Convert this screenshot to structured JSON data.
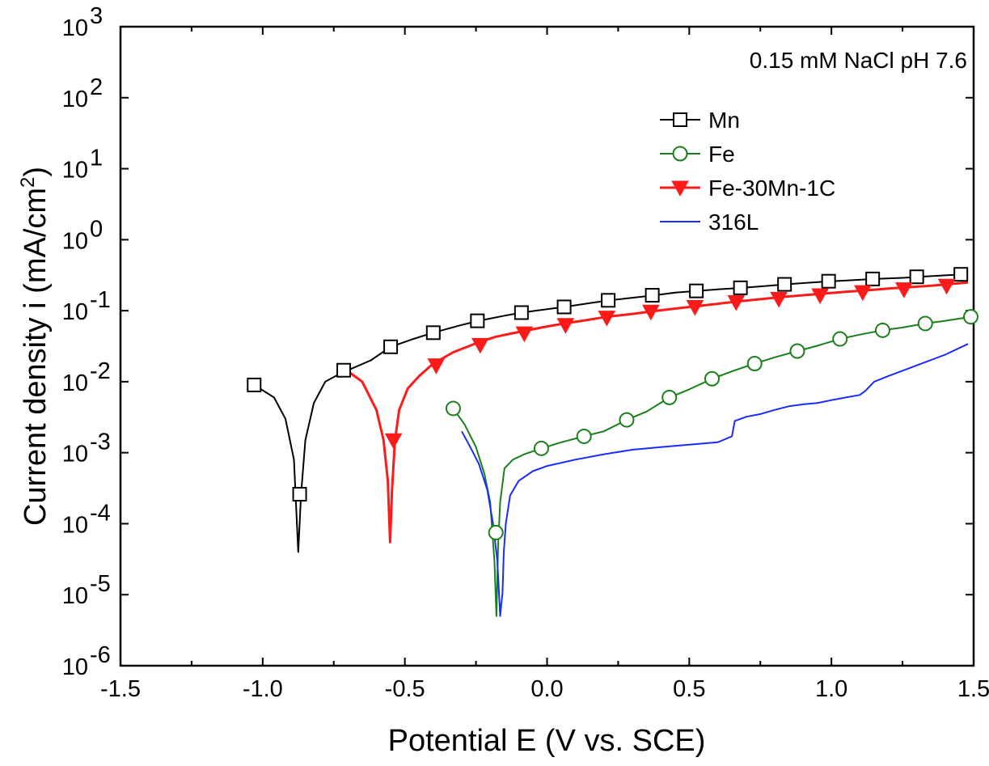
{
  "chart_data": {
    "type": "line",
    "title": "",
    "xlabel": "Potential E (V vs. SCE)",
    "ylabel": "Current density i (mA/cm",
    "ylabel_superscript": "2",
    "ylabel_suffix": ")",
    "xlim": [
      -1.5,
      1.5
    ],
    "ylim": [
      1e-06,
      1000
    ],
    "yscale": "log",
    "grid": false,
    "legend_position": "top-right",
    "x_ticks": [
      -1.5,
      -1.0,
      -0.5,
      0.0,
      0.5,
      1.0,
      1.5
    ],
    "x_tick_labels": [
      "-1.5",
      "-1.0",
      "-0.5",
      "0.0",
      "0.5",
      "1.0",
      "1.5"
    ],
    "y_tick_exponents": [
      -6,
      -5,
      -4,
      -3,
      -2,
      -1,
      0,
      1,
      2,
      3
    ],
    "y_tick_base": "10",
    "annotation": "0.15 mM NaCl  pH 7.6",
    "series": [
      {
        "name": "Mn",
        "color": "#000000",
        "marker": "open-square",
        "x": [
          -1.03,
          -0.96,
          -0.92,
          -0.89,
          -0.875,
          -0.865,
          -0.85,
          -0.82,
          -0.78,
          -0.72,
          -0.7,
          -0.62,
          -0.55,
          -0.47,
          -0.4,
          -0.3,
          -0.24,
          -0.15,
          -0.09,
          0.0,
          0.06,
          0.15,
          0.22,
          0.3,
          0.38,
          0.45,
          0.53,
          0.6,
          0.69,
          0.75,
          0.84,
          0.9,
          1.0,
          1.08,
          1.15,
          1.25,
          1.31,
          1.4,
          1.46,
          1.48
        ],
        "y": [
          0.009,
          0.006,
          0.003,
          0.0008,
          4e-05,
          0.00026,
          0.0015,
          0.005,
          0.01,
          0.0135,
          0.0145,
          0.02,
          0.031,
          0.04,
          0.049,
          0.063,
          0.072,
          0.085,
          0.094,
          0.105,
          0.113,
          0.128,
          0.14,
          0.152,
          0.165,
          0.18,
          0.19,
          0.2,
          0.21,
          0.22,
          0.235,
          0.245,
          0.26,
          0.27,
          0.28,
          0.29,
          0.3,
          0.315,
          0.325,
          0.33
        ],
        "marker_x": [
          -1.03,
          -0.87,
          -0.715,
          -0.55,
          -0.4,
          -0.245,
          -0.09,
          0.06,
          0.215,
          0.37,
          0.525,
          0.68,
          0.835,
          0.99,
          1.145,
          1.3,
          1.455
        ],
        "marker_y": [
          0.009,
          0.00026,
          0.0145,
          0.031,
          0.049,
          0.072,
          0.094,
          0.113,
          0.14,
          0.165,
          0.19,
          0.21,
          0.235,
          0.26,
          0.28,
          0.3,
          0.325
        ]
      },
      {
        "name": "Fe",
        "color": "#1a7f1a",
        "marker": "open-circle",
        "x": [
          -0.33,
          -0.29,
          -0.25,
          -0.22,
          -0.2,
          -0.185,
          -0.178,
          -0.172,
          -0.165,
          -0.15,
          -0.12,
          -0.08,
          -0.02,
          0.05,
          0.13,
          0.2,
          0.28,
          0.35,
          0.43,
          0.5,
          0.58,
          0.65,
          0.73,
          0.8,
          0.88,
          0.95,
          1.03,
          1.1,
          1.18,
          1.25,
          1.33,
          1.4,
          1.49
        ],
        "y": [
          0.0042,
          0.0025,
          0.0012,
          0.0005,
          0.0002,
          3e-05,
          5e-06,
          5e-05,
          0.0002,
          0.0006,
          0.0008,
          0.00095,
          0.00115,
          0.0014,
          0.0017,
          0.002,
          0.0029,
          0.0038,
          0.006,
          0.0078,
          0.011,
          0.014,
          0.018,
          0.022,
          0.027,
          0.032,
          0.04,
          0.046,
          0.053,
          0.058,
          0.066,
          0.072,
          0.082
        ],
        "marker_x": [
          -0.33,
          -0.18,
          -0.02,
          0.13,
          0.28,
          0.43,
          0.58,
          0.73,
          0.88,
          1.03,
          1.18,
          1.33,
          1.49
        ],
        "marker_y": [
          0.0042,
          7.5e-05,
          0.00115,
          0.0017,
          0.0029,
          0.006,
          0.011,
          0.018,
          0.027,
          0.04,
          0.053,
          0.066,
          0.082
        ]
      },
      {
        "name": "Fe-30Mn-1C",
        "color": "#ff1a1a",
        "marker": "filled-triangle-down",
        "x": [
          -0.7,
          -0.65,
          -0.6,
          -0.575,
          -0.56,
          -0.552,
          -0.545,
          -0.535,
          -0.52,
          -0.49,
          -0.45,
          -0.4,
          -0.33,
          -0.24,
          -0.18,
          -0.1,
          0.0,
          0.06,
          0.15,
          0.21,
          0.3,
          0.37,
          0.45,
          0.52,
          0.6,
          0.67,
          0.75,
          0.82,
          0.9,
          0.98,
          1.05,
          1.13,
          1.2,
          1.28,
          1.35,
          1.43,
          1.48
        ],
        "y": [
          0.014,
          0.01,
          0.004,
          0.0015,
          0.0004,
          5.5e-05,
          0.0003,
          0.0015,
          0.004,
          0.008,
          0.012,
          0.018,
          0.026,
          0.036,
          0.043,
          0.05,
          0.06,
          0.066,
          0.075,
          0.082,
          0.09,
          0.098,
          0.107,
          0.115,
          0.125,
          0.135,
          0.145,
          0.155,
          0.165,
          0.175,
          0.185,
          0.195,
          0.205,
          0.215,
          0.225,
          0.24,
          0.25
        ],
        "marker_x": [
          -0.54,
          -0.39,
          -0.235,
          -0.08,
          0.065,
          0.21,
          0.365,
          0.52,
          0.665,
          0.815,
          0.96,
          1.11,
          1.255,
          1.405
        ],
        "marker_y": [
          0.0015,
          0.017,
          0.033,
          0.048,
          0.063,
          0.08,
          0.097,
          0.113,
          0.132,
          0.147,
          0.165,
          0.183,
          0.2,
          0.225
        ]
      },
      {
        "name": "316L",
        "color": "#1a2bff",
        "marker": "none",
        "x": [
          -0.3,
          -0.27,
          -0.24,
          -0.21,
          -0.19,
          -0.175,
          -0.165,
          -0.16,
          -0.157,
          -0.152,
          -0.145,
          -0.13,
          -0.1,
          -0.05,
          0.0,
          0.1,
          0.2,
          0.3,
          0.4,
          0.5,
          0.6,
          0.65,
          0.66,
          0.7,
          0.75,
          0.8,
          0.85,
          0.9,
          0.95,
          1.0,
          1.05,
          1.1,
          1.12,
          1.15,
          1.2,
          1.3,
          1.4,
          1.48
        ],
        "y": [
          0.002,
          0.0012,
          0.0007,
          0.0003,
          0.0001,
          3e-05,
          5e-06,
          8e-06,
          1e-05,
          4e-05,
          0.0001,
          0.00025,
          0.0004,
          0.00055,
          0.00065,
          0.0008,
          0.00095,
          0.0011,
          0.0012,
          0.0013,
          0.0014,
          0.0017,
          0.0028,
          0.0032,
          0.0035,
          0.004,
          0.0045,
          0.0048,
          0.005,
          0.0055,
          0.006,
          0.0065,
          0.0075,
          0.01,
          0.012,
          0.017,
          0.024,
          0.034
        ]
      }
    ]
  }
}
